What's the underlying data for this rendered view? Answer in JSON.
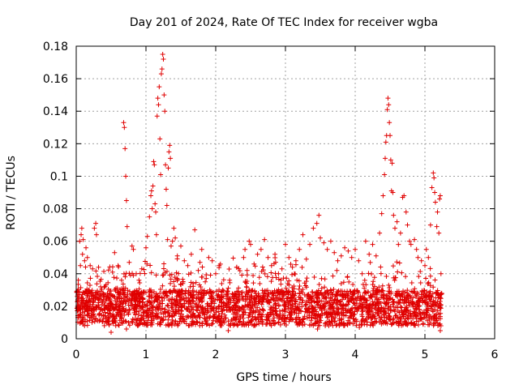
{
  "chart_data": {
    "type": "scatter",
    "title": "Day 201 of 2024, Rate Of TEC Index for receiver wgba",
    "xlabel": "GPS time / hours",
    "ylabel": "ROTI / TECUs",
    "xlim": [
      0,
      6
    ],
    "ylim": [
      0,
      0.18
    ],
    "xticks": [
      0,
      1,
      2,
      3,
      4,
      5,
      6
    ],
    "yticks": [
      0,
      0.02,
      0.04,
      0.06,
      0.08,
      0.1,
      0.12,
      0.14,
      0.16,
      0.18
    ],
    "ytick_labels": [
      "0",
      "0.02",
      "0.04",
      "0.06",
      "0.08",
      "0.1",
      "0.12",
      "0.14",
      "0.16",
      "0.18"
    ],
    "grid": true,
    "marker": "+",
    "color": "#e00000",
    "series": [
      {
        "name": "ROTI",
        "points": [
          [
            0.02,
            0.02
          ],
          [
            0.03,
            0.036
          ],
          [
            0.05,
            0.06
          ],
          [
            0.06,
            0.045
          ],
          [
            0.07,
            0.064
          ],
          [
            0.08,
            0.068
          ],
          [
            0.09,
            0.052
          ],
          [
            0.1,
            0.061
          ],
          [
            0.12,
            0.048
          ],
          [
            0.14,
            0.056
          ],
          [
            0.16,
            0.05
          ],
          [
            0.2,
            0.045
          ],
          [
            0.26,
            0.068
          ],
          [
            0.28,
            0.071
          ],
          [
            0.29,
            0.064
          ],
          [
            0.32,
            0.044
          ],
          [
            0.35,
            0.032
          ],
          [
            0.52,
            0.041
          ],
          [
            0.55,
            0.053
          ],
          [
            0.6,
            0.045
          ],
          [
            0.65,
            0.036
          ],
          [
            0.68,
            0.133
          ],
          [
            0.69,
            0.13
          ],
          [
            0.7,
            0.117
          ],
          [
            0.71,
            0.1
          ],
          [
            0.72,
            0.085
          ],
          [
            0.73,
            0.069
          ],
          [
            0.76,
            0.047
          ],
          [
            0.8,
            0.057
          ],
          [
            0.82,
            0.055
          ],
          [
            0.86,
            0.04
          ],
          [
            0.9,
            0.036
          ],
          [
            0.94,
            0.043
          ],
          [
            1.0,
            0.056
          ],
          [
            1.02,
            0.063
          ],
          [
            1.05,
            0.075
          ],
          [
            1.07,
            0.088
          ],
          [
            1.08,
            0.091
          ],
          [
            1.09,
            0.08
          ],
          [
            1.1,
            0.094
          ],
          [
            1.11,
            0.109
          ],
          [
            1.12,
            0.107
          ],
          [
            1.13,
            0.083
          ],
          [
            1.14,
            0.078
          ],
          [
            1.15,
            0.064
          ],
          [
            1.16,
            0.137
          ],
          [
            1.17,
            0.148
          ],
          [
            1.18,
            0.144
          ],
          [
            1.19,
            0.155
          ],
          [
            1.2,
            0.123
          ],
          [
            1.21,
            0.101
          ],
          [
            1.22,
            0.163
          ],
          [
            1.23,
            0.166
          ],
          [
            1.24,
            0.175
          ],
          [
            1.25,
            0.172
          ],
          [
            1.26,
            0.15
          ],
          [
            1.27,
            0.14
          ],
          [
            1.28,
            0.107
          ],
          [
            1.29,
            0.092
          ],
          [
            1.3,
            0.082
          ],
          [
            1.31,
            0.061
          ],
          [
            1.32,
            0.105
          ],
          [
            1.33,
            0.115
          ],
          [
            1.34,
            0.119
          ],
          [
            1.35,
            0.111
          ],
          [
            1.36,
            0.057
          ],
          [
            1.38,
            0.06
          ],
          [
            1.4,
            0.068
          ],
          [
            1.42,
            0.062
          ],
          [
            1.45,
            0.051
          ],
          [
            1.5,
            0.057
          ],
          [
            1.55,
            0.048
          ],
          [
            1.6,
            0.045
          ],
          [
            1.65,
            0.052
          ],
          [
            1.7,
            0.067
          ],
          [
            1.75,
            0.042
          ],
          [
            1.8,
            0.055
          ],
          [
            1.85,
            0.035
          ],
          [
            1.9,
            0.05
          ],
          [
            1.95,
            0.048
          ],
          [
            2.0,
            0.04
          ],
          [
            2.05,
            0.045
          ],
          [
            2.1,
            0.03
          ],
          [
            2.2,
            0.036
          ],
          [
            2.3,
            0.044
          ],
          [
            2.4,
            0.05
          ],
          [
            2.42,
            0.055
          ],
          [
            2.45,
            0.042
          ],
          [
            2.48,
            0.06
          ],
          [
            2.5,
            0.058
          ],
          [
            2.55,
            0.046
          ],
          [
            2.6,
            0.052
          ],
          [
            2.65,
            0.055
          ],
          [
            2.7,
            0.061
          ],
          [
            2.75,
            0.05
          ],
          [
            2.8,
            0.045
          ],
          [
            2.85,
            0.052
          ],
          [
            2.9,
            0.04
          ],
          [
            2.95,
            0.043
          ],
          [
            3.0,
            0.058
          ],
          [
            3.05,
            0.05
          ],
          [
            3.1,
            0.044
          ],
          [
            3.15,
            0.048
          ],
          [
            3.2,
            0.055
          ],
          [
            3.25,
            0.064
          ],
          [
            3.3,
            0.049
          ],
          [
            3.35,
            0.058
          ],
          [
            3.4,
            0.068
          ],
          [
            3.45,
            0.071
          ],
          [
            3.48,
            0.076
          ],
          [
            3.5,
            0.062
          ],
          [
            3.55,
            0.059
          ],
          [
            3.6,
            0.055
          ],
          [
            3.65,
            0.06
          ],
          [
            3.7,
            0.053
          ],
          [
            3.75,
            0.048
          ],
          [
            3.8,
            0.051
          ],
          [
            3.85,
            0.056
          ],
          [
            3.9,
            0.054
          ],
          [
            3.95,
            0.05
          ],
          [
            4.0,
            0.055
          ],
          [
            4.05,
            0.048
          ],
          [
            4.1,
            0.04
          ],
          [
            4.15,
            0.06
          ],
          [
            4.2,
            0.052
          ],
          [
            4.25,
            0.058
          ],
          [
            4.3,
            0.051
          ],
          [
            4.35,
            0.065
          ],
          [
            4.38,
            0.077
          ],
          [
            4.4,
            0.088
          ],
          [
            4.42,
            0.101
          ],
          [
            4.43,
            0.111
          ],
          [
            4.44,
            0.121
          ],
          [
            4.45,
            0.125
          ],
          [
            4.46,
            0.141
          ],
          [
            4.47,
            0.148
          ],
          [
            4.48,
            0.144
          ],
          [
            4.49,
            0.133
          ],
          [
            4.5,
            0.125
          ],
          [
            4.51,
            0.11
          ],
          [
            4.52,
            0.091
          ],
          [
            4.53,
            0.108
          ],
          [
            4.54,
            0.09
          ],
          [
            4.55,
            0.076
          ],
          [
            4.57,
            0.068
          ],
          [
            4.6,
            0.072
          ],
          [
            4.62,
            0.058
          ],
          [
            4.65,
            0.065
          ],
          [
            4.68,
            0.087
          ],
          [
            4.7,
            0.088
          ],
          [
            4.73,
            0.078
          ],
          [
            4.75,
            0.07
          ],
          [
            4.78,
            0.06
          ],
          [
            4.8,
            0.058
          ],
          [
            4.85,
            0.061
          ],
          [
            4.88,
            0.055
          ],
          [
            4.9,
            0.05
          ],
          [
            4.95,
            0.048
          ],
          [
            5.0,
            0.045
          ],
          [
            5.02,
            0.055
          ],
          [
            5.05,
            0.05
          ],
          [
            5.08,
            0.07
          ],
          [
            5.1,
            0.093
          ],
          [
            5.12,
            0.102
          ],
          [
            5.13,
            0.099
          ],
          [
            5.14,
            0.09
          ],
          [
            5.15,
            0.084
          ],
          [
            5.17,
            0.069
          ],
          [
            5.18,
            0.078
          ],
          [
            5.2,
            0.065
          ],
          [
            5.21,
            0.086
          ],
          [
            5.22,
            0.088
          ],
          [
            5.23,
            0.04
          ],
          [
            5.24,
            0.028
          ],
          [
            0.1,
            0.012
          ],
          [
            0.22,
            0.018
          ],
          [
            0.4,
            0.022
          ],
          [
            0.58,
            0.015
          ],
          [
            0.75,
            0.01
          ],
          [
            0.85,
            0.025
          ],
          [
            1.05,
            0.03
          ],
          [
            1.2,
            0.028
          ],
          [
            1.42,
            0.021
          ],
          [
            1.62,
            0.017
          ],
          [
            1.78,
            0.024
          ],
          [
            1.92,
            0.014
          ],
          [
            2.08,
            0.026
          ],
          [
            2.25,
            0.019
          ],
          [
            2.44,
            0.032
          ],
          [
            2.62,
            0.023
          ],
          [
            2.78,
            0.016
          ],
          [
            2.92,
            0.029
          ],
          [
            3.08,
            0.018
          ],
          [
            3.22,
            0.025
          ],
          [
            3.38,
            0.013
          ],
          [
            3.52,
            0.031
          ],
          [
            3.68,
            0.02
          ],
          [
            3.82,
            0.027
          ],
          [
            3.98,
            0.015
          ],
          [
            4.12,
            0.024
          ],
          [
            4.28,
            0.019
          ],
          [
            4.48,
            0.033
          ],
          [
            4.62,
            0.022
          ],
          [
            4.78,
            0.026
          ],
          [
            4.92,
            0.018
          ],
          [
            5.08,
            0.023
          ],
          [
            5.2,
            0.015
          ],
          [
            5.22,
            0.005
          ],
          [
            5.23,
            0.008
          ],
          [
            0.5,
            0.004
          ],
          [
            0.72,
            0.006
          ],
          [
            2.18,
            0.005
          ],
          [
            3.46,
            0.006
          ],
          [
            4.06,
            0.007
          ]
        ]
      }
    ]
  }
}
